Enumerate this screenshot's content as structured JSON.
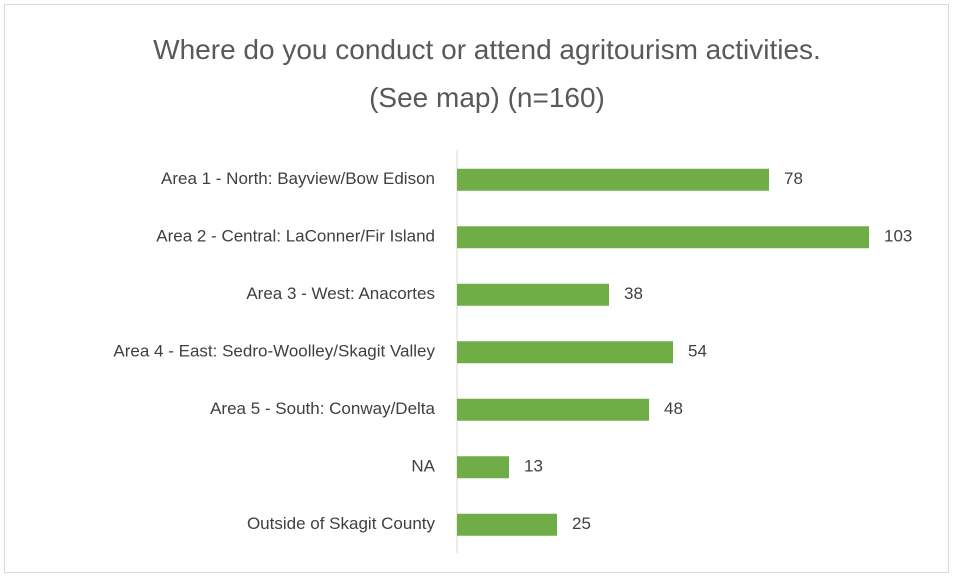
{
  "chart_data": {
    "type": "bar",
    "orientation": "horizontal",
    "title": "Where do you conduct or attend agritourism activities. (See map) (n=160)",
    "categories": [
      "Area 1 - North: Bayview/Bow Edison",
      "Area 2 - Central: LaConner/Fir Island",
      "Area 3 - West: Anacortes",
      "Area 4 - East: Sedro-Woolley/Skagit Valley",
      "Area 5 - South: Conway/Delta",
      "NA",
      "Outside of Skagit County"
    ],
    "values": [
      78,
      103,
      38,
      54,
      48,
      13,
      25
    ],
    "color": "#70ad47"
  }
}
